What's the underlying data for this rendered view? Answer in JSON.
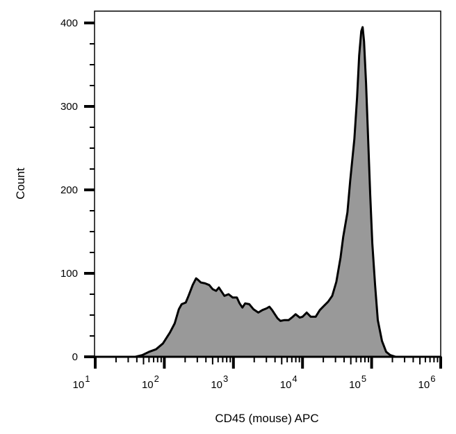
{
  "chart_data": {
    "type": "area",
    "subtype": "flow-cytometry-histogram",
    "title": "",
    "xlabel": "CD45 (mouse) APC",
    "ylabel": "Count",
    "xscale": "log10",
    "xlim_log10": [
      1,
      6
    ],
    "ylim": [
      0,
      410
    ],
    "x_tick_labels": [
      {
        "base": "10",
        "exp": "1",
        "log10": 1
      },
      {
        "base": "10",
        "exp": "2",
        "log10": 2
      },
      {
        "base": "10",
        "exp": "3",
        "log10": 3
      },
      {
        "base": "10",
        "exp": "4",
        "log10": 4
      },
      {
        "base": "10",
        "exp": "5",
        "log10": 5
      },
      {
        "base": "10",
        "exp": "6",
        "log10": 6
      }
    ],
    "y_ticks": [
      0,
      100,
      200,
      300,
      400
    ],
    "y_minor_step": 25,
    "grid": false,
    "legend": null,
    "fill_color": "#999999",
    "line_color": "#000000",
    "series": [
      {
        "name": "CD45 APC",
        "points_log10_count": [
          [
            1.0,
            0
          ],
          [
            1.58,
            0
          ],
          [
            1.68,
            2
          ],
          [
            1.78,
            6
          ],
          [
            1.88,
            9
          ],
          [
            1.98,
            16
          ],
          [
            2.08,
            29
          ],
          [
            2.15,
            40
          ],
          [
            2.21,
            57
          ],
          [
            2.25,
            63
          ],
          [
            2.31,
            65
          ],
          [
            2.35,
            73
          ],
          [
            2.41,
            86
          ],
          [
            2.46,
            94
          ],
          [
            2.49,
            92
          ],
          [
            2.53,
            89
          ],
          [
            2.59,
            88
          ],
          [
            2.65,
            86
          ],
          [
            2.7,
            81
          ],
          [
            2.75,
            79
          ],
          [
            2.79,
            83
          ],
          [
            2.83,
            78
          ],
          [
            2.87,
            73
          ],
          [
            2.93,
            75
          ],
          [
            2.99,
            71
          ],
          [
            3.05,
            71
          ],
          [
            3.09,
            64
          ],
          [
            3.13,
            59
          ],
          [
            3.17,
            64
          ],
          [
            3.23,
            63
          ],
          [
            3.29,
            57
          ],
          [
            3.36,
            53
          ],
          [
            3.42,
            56
          ],
          [
            3.48,
            58
          ],
          [
            3.52,
            60
          ],
          [
            3.56,
            56
          ],
          [
            3.6,
            51
          ],
          [
            3.64,
            46
          ],
          [
            3.68,
            43
          ],
          [
            3.74,
            44
          ],
          [
            3.8,
            44
          ],
          [
            3.86,
            48
          ],
          [
            3.9,
            51
          ],
          [
            3.96,
            47
          ],
          [
            4.0,
            48
          ],
          [
            4.06,
            53
          ],
          [
            4.12,
            48
          ],
          [
            4.19,
            48
          ],
          [
            4.25,
            56
          ],
          [
            4.31,
            61
          ],
          [
            4.37,
            66
          ],
          [
            4.43,
            73
          ],
          [
            4.49,
            90
          ],
          [
            4.55,
            119
          ],
          [
            4.59,
            144
          ],
          [
            4.65,
            173
          ],
          [
            4.69,
            211
          ],
          [
            4.75,
            261
          ],
          [
            4.79,
            311
          ],
          [
            4.82,
            361
          ],
          [
            4.85,
            390
          ],
          [
            4.87,
            395
          ],
          [
            4.89,
            378
          ],
          [
            4.92,
            328
          ],
          [
            4.95,
            261
          ],
          [
            4.98,
            194
          ],
          [
            5.01,
            136
          ],
          [
            5.05,
            86
          ],
          [
            5.09,
            44
          ],
          [
            5.15,
            19
          ],
          [
            5.21,
            6
          ],
          [
            5.27,
            2
          ],
          [
            5.35,
            0
          ],
          [
            6.0,
            0
          ]
        ]
      }
    ],
    "peaks": [
      {
        "log10": 2.46,
        "count": 94
      },
      {
        "log10": 4.87,
        "count": 395
      }
    ]
  }
}
